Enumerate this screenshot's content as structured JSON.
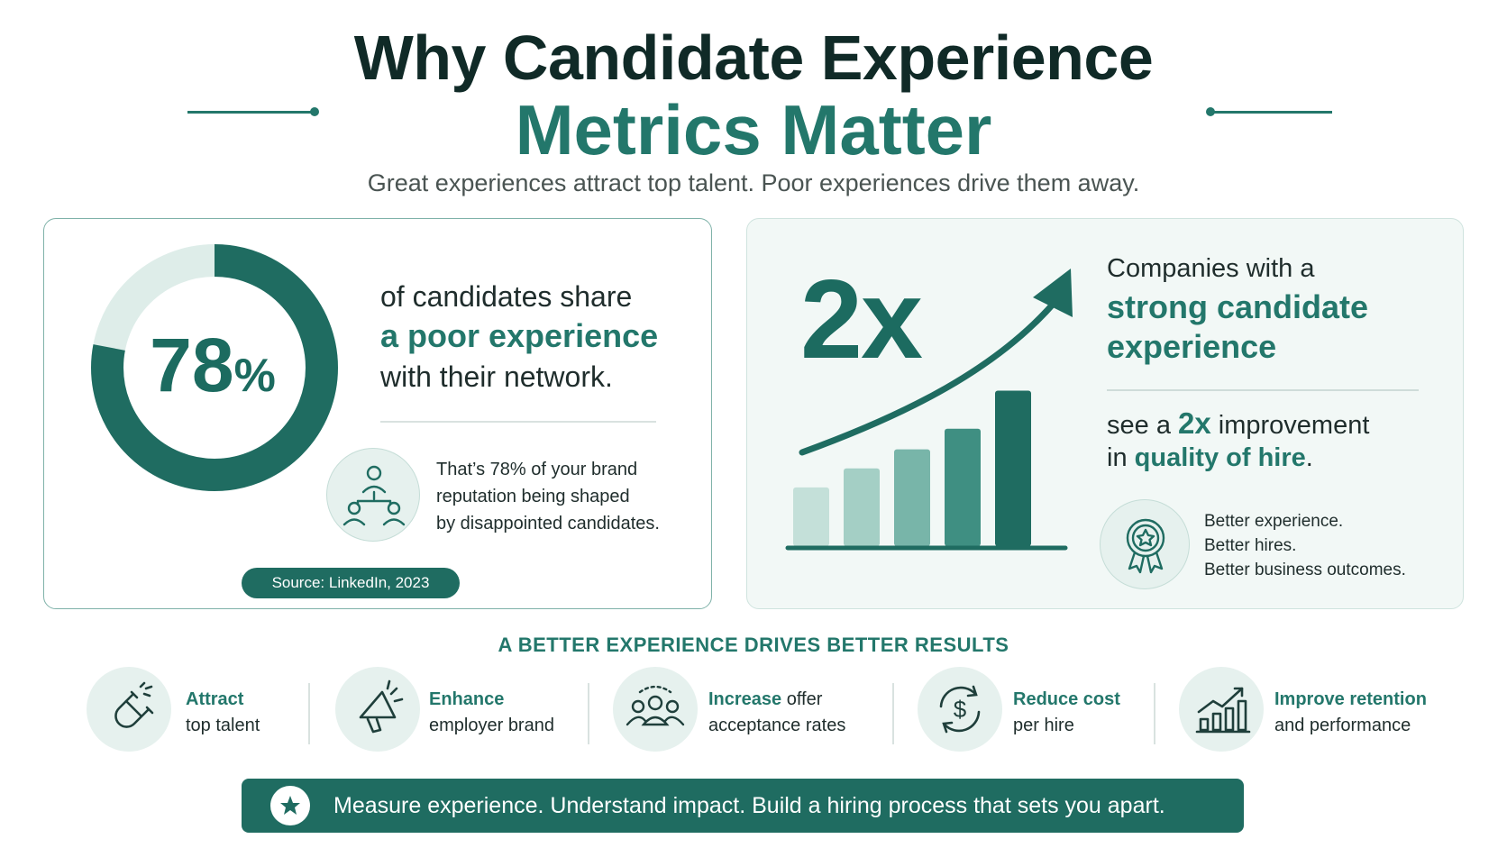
{
  "header": {
    "title_line1": "Why Candidate Experience",
    "title_line2": "Metrics Matter",
    "subtitle": "Great experiences attract top talent. Poor experiences drive them away."
  },
  "left_card": {
    "donut_value_percent": 78,
    "donut_number": "78",
    "donut_sign": "%",
    "line1": "of candidates share",
    "line2": "a poor experience",
    "line3": "with their network.",
    "icon": "network-people-icon",
    "note_line1": "That’s 78% of your brand",
    "note_line2": "reputation being shaped",
    "note_line3": "by disappointed candidates.",
    "source": "Source: LinkedIn, 2023"
  },
  "right_card": {
    "big_value": "2x",
    "line1": "Companies with a",
    "line2": "strong candidate",
    "line3": "experience",
    "line4_pre": "see a ",
    "line4_accent": "2x",
    "line4_post": " improvement",
    "line5_pre": "in ",
    "line5_accent": "quality of hire",
    "line5_post": ".",
    "icon": "award-ribbon-icon",
    "note_line1": "Better experience.",
    "note_line2": "Better hires.",
    "note_line3": "Better business outcomes.",
    "bar_levels": [
      0.37,
      0.49,
      0.61,
      0.74,
      0.98
    ]
  },
  "results": {
    "title": "A BETTER EXPERIENCE DRIVES BETTER RESULTS",
    "items": [
      {
        "icon": "magnet-icon",
        "accent": "Attract",
        "rest1": "",
        "rest2": "top talent"
      },
      {
        "icon": "megaphone-icon",
        "accent": "Enhance",
        "rest1": "",
        "rest2": "employer brand"
      },
      {
        "icon": "group-people-icon",
        "accent": "Increase",
        "rest1": " offer",
        "rest2": "acceptance rates"
      },
      {
        "icon": "dollar-cycle-icon",
        "accent": "Reduce cost",
        "rest1": "",
        "rest2": "per hire"
      },
      {
        "icon": "growth-chart-icon",
        "accent": "Improve retention",
        "rest1": "",
        "rest2": "and performance"
      }
    ]
  },
  "footer": {
    "icon": "star-icon",
    "text": "Measure experience. Understand impact. Build a hiring process that sets you apart."
  },
  "colors": {
    "primary": "#23776b",
    "dark": "#102a27",
    "light": "#e6f1ee",
    "banner": "#1f6c61"
  }
}
